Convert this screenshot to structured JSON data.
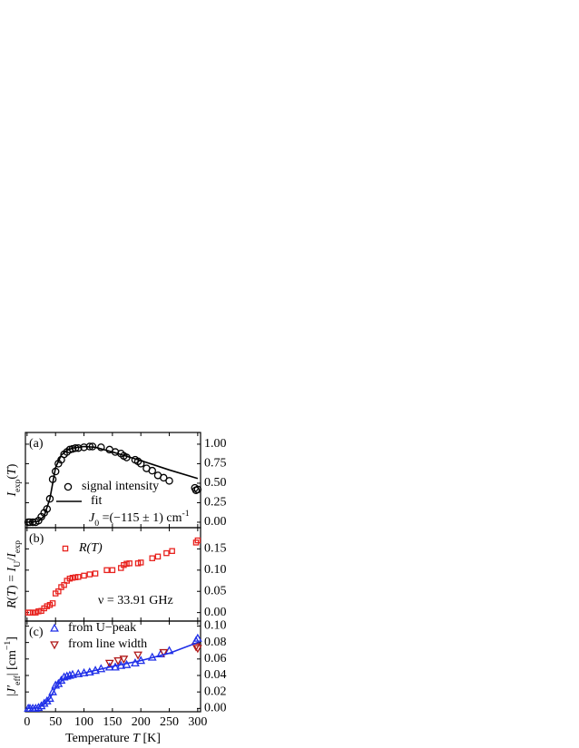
{
  "chart_data": [
    {
      "type": "scatter",
      "panel_label": "(a)",
      "ylabel": [
        [
          "I",
          "i"
        ],
        [
          "exp",
          "sub"
        ],
        [
          "(",
          ""
        ],
        [
          "T",
          "i"
        ],
        [
          ")",
          ""
        ]
      ],
      "xlim": [
        -3,
        305
      ],
      "ylim": [
        -0.07,
        1.15
      ],
      "yticks": [
        {
          "value": 0,
          "label": "0.00"
        },
        0.25,
        {
          "value": 0.5,
          "label": "0.50"
        },
        0.75,
        {
          "value": 1,
          "label": "1.00"
        }
      ],
      "annotations": [
        [
          [
            "J",
            "i"
          ],
          [
            "0",
            "sub"
          ],
          [
            " =(−115 ± 1) cm",
            ""
          ],
          [
            "-1",
            "sup"
          ]
        ]
      ],
      "series": [
        {
          "name": "signal intensity",
          "color": "#000000",
          "marker": "circle",
          "x": [
            2,
            5,
            10,
            15,
            20,
            25,
            30,
            35,
            40,
            45,
            50,
            55,
            60,
            65,
            70,
            75,
            80,
            85,
            90,
            100,
            110,
            115,
            130,
            145,
            155,
            165,
            170,
            175,
            190,
            195,
            200,
            210,
            220,
            230,
            240,
            250,
            295,
            297,
            300
          ],
          "values": [
            0.0,
            0.0,
            0.0,
            0.0,
            0.02,
            0.07,
            0.12,
            0.17,
            0.3,
            0.55,
            0.65,
            0.75,
            0.8,
            0.87,
            0.9,
            0.93,
            0.94,
            0.95,
            0.95,
            0.96,
            0.97,
            0.97,
            0.96,
            0.93,
            0.9,
            0.88,
            0.85,
            0.83,
            0.8,
            0.78,
            0.75,
            0.69,
            0.66,
            0.6,
            0.57,
            0.53,
            0.44,
            0.41,
            0.42
          ]
        },
        {
          "name": "fit",
          "color": "#000000",
          "marker": "line",
          "x": [
            0,
            20,
            30,
            40,
            45,
            50,
            60,
            70,
            80,
            100,
            120,
            150,
            200,
            250,
            300
          ],
          "values": [
            0.0,
            0.01,
            0.08,
            0.3,
            0.5,
            0.7,
            0.86,
            0.92,
            0.95,
            0.97,
            0.96,
            0.9,
            0.79,
            0.67,
            0.56
          ]
        }
      ]
    },
    {
      "type": "scatter",
      "panel_label": "(b)",
      "ylabel": [
        [
          "R",
          "i"
        ],
        [
          "(",
          ""
        ],
        [
          "T",
          "i"
        ],
        [
          ") = ",
          ""
        ],
        [
          "I",
          "i"
        ],
        [
          "U",
          "sub"
        ],
        [
          "/",
          ""
        ],
        [
          "I",
          "i"
        ],
        [
          "exp",
          "sub"
        ]
      ],
      "xlim": [
        -3,
        305
      ],
      "ylim": [
        -0.02,
        0.2
      ],
      "yticks": [
        {
          "value": 0,
          "label": "0.00"
        },
        0.05,
        {
          "value": 0.1,
          "label": "0.10"
        },
        0.15
      ],
      "annotations": [
        [
          [
            "ν = 33.91 GHz",
            ""
          ]
        ]
      ],
      "series": [
        {
          "name": "R(T)",
          "name_style": "italic",
          "color": "#e8231f",
          "marker": "square",
          "x": [
            2,
            5,
            10,
            15,
            20,
            25,
            30,
            35,
            40,
            45,
            50,
            55,
            60,
            65,
            70,
            75,
            80,
            85,
            90,
            100,
            110,
            120,
            140,
            150,
            165,
            170,
            175,
            180,
            195,
            200,
            220,
            230,
            245,
            255,
            297,
            300
          ],
          "values": [
            0.0,
            0.0,
            0.0,
            0.0,
            0.003,
            0.004,
            0.01,
            0.015,
            0.018,
            0.022,
            0.045,
            0.05,
            0.06,
            0.065,
            0.075,
            0.08,
            0.082,
            0.083,
            0.084,
            0.087,
            0.09,
            0.092,
            0.1,
            0.1,
            0.105,
            0.112,
            0.115,
            0.116,
            0.116,
            0.118,
            0.128,
            0.132,
            0.14,
            0.145,
            0.165,
            0.17
          ]
        }
      ]
    },
    {
      "type": "scatter",
      "panel_label": "(c)",
      "ylabel": [
        [
          "|",
          ""
        ],
        [
          "J′",
          "i"
        ],
        [
          "eff",
          "sub"
        ],
        [
          "| [cm",
          ""
        ],
        [
          "−1",
          "sup"
        ],
        [
          "]",
          ""
        ]
      ],
      "xlabel": [
        [
          "Temperature ",
          ""
        ],
        [
          "T",
          "i"
        ],
        [
          " [K]",
          ""
        ]
      ],
      "xlim": [
        -3,
        305
      ],
      "xticks": [
        0,
        50,
        100,
        150,
        200,
        250,
        300
      ],
      "ylim": [
        -0.004,
        0.106
      ],
      "yticks": [
        {
          "value": 0,
          "label": "0.00"
        },
        0.02,
        0.04,
        0.06,
        0.08,
        {
          "value": 0.1,
          "label": "0.10"
        }
      ],
      "series": [
        {
          "name": "from U−peak",
          "color": "#1f2fe8",
          "marker": "tri-up",
          "x": [
            2,
            5,
            10,
            15,
            20,
            25,
            30,
            35,
            40,
            45,
            50,
            55,
            60,
            65,
            70,
            75,
            80,
            90,
            100,
            110,
            120,
            130,
            145,
            155,
            165,
            175,
            190,
            200,
            220,
            235,
            250,
            297,
            300
          ],
          "values": [
            0.0,
            0.0,
            0.0,
            0.0,
            0.001,
            0.003,
            0.006,
            0.009,
            0.012,
            0.02,
            0.028,
            0.03,
            0.034,
            0.038,
            0.039,
            0.04,
            0.041,
            0.042,
            0.043,
            0.044,
            0.046,
            0.048,
            0.05,
            0.05,
            0.052,
            0.053,
            0.055,
            0.058,
            0.062,
            0.066,
            0.07,
            0.082,
            0.085
          ]
        },
        {
          "name": "from line width",
          "color": "#b01818",
          "marker": "tri-down",
          "x": [
            145,
            160,
            170,
            195,
            240,
            297,
            300
          ],
          "values": [
            0.055,
            0.058,
            0.06,
            0.065,
            0.068,
            0.075,
            0.073
          ]
        },
        {
          "color": "#1f2fe8",
          "marker": "line",
          "x": [
            0,
            20,
            30,
            40,
            50,
            60,
            70,
            100,
            150,
            200,
            250,
            300
          ],
          "values": [
            0.0,
            0.001,
            0.005,
            0.012,
            0.025,
            0.033,
            0.038,
            0.043,
            0.051,
            0.058,
            0.067,
            0.08
          ]
        }
      ]
    }
  ]
}
